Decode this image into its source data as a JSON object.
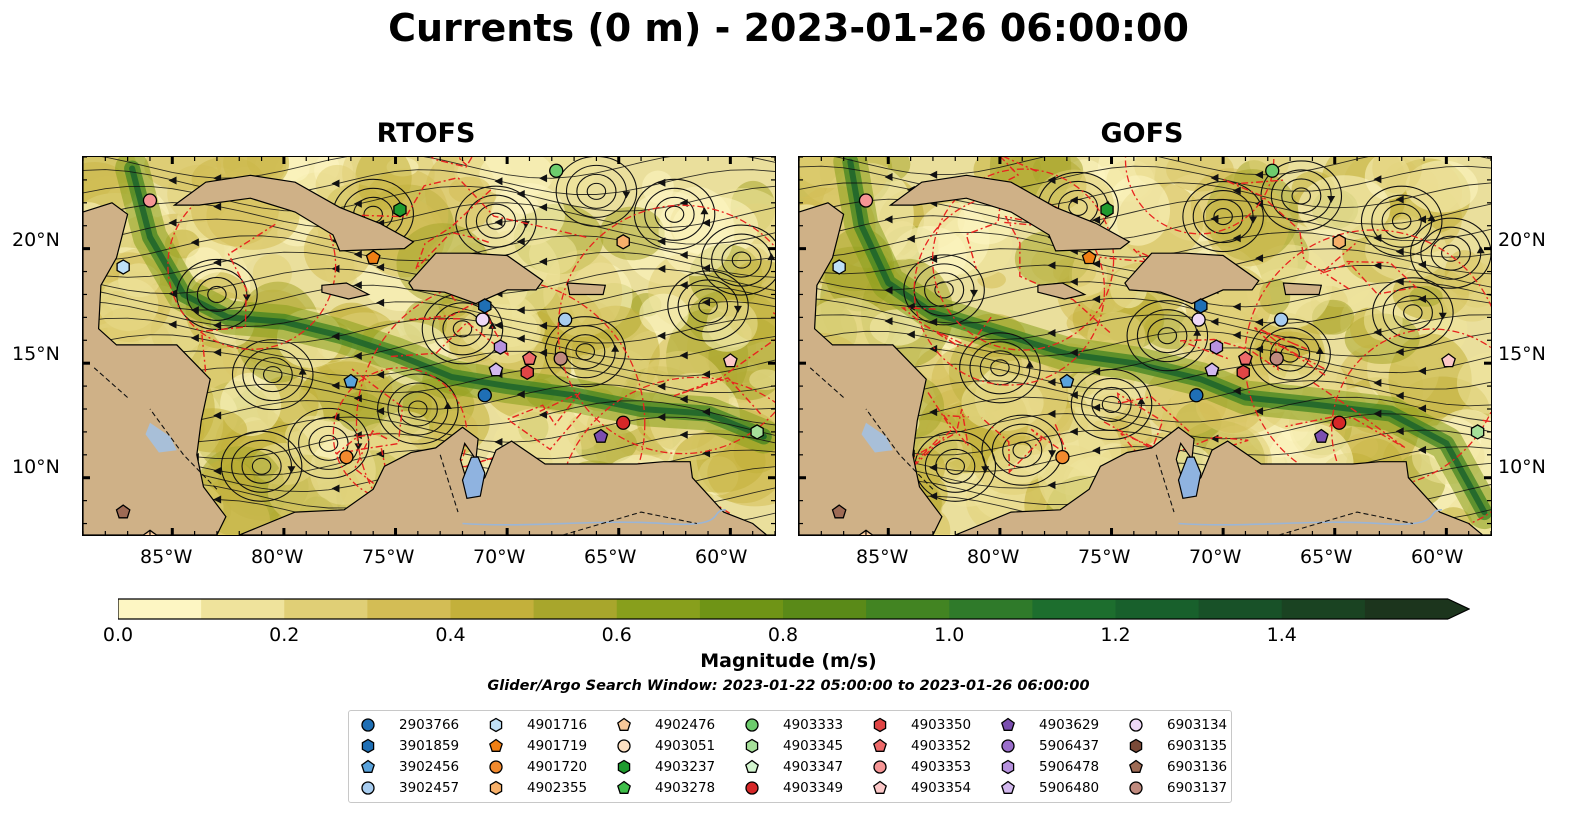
{
  "title": "Currents (0 m) - 2023-01-26 06:00:00",
  "panels": [
    {
      "title": "RTOFS"
    },
    {
      "title": "GOFS"
    }
  ],
  "axes": {
    "lon_ticks": [
      "85°W",
      "80°W",
      "75°W",
      "70°W",
      "65°W",
      "60°W"
    ],
    "lat_ticks": [
      "20°N",
      "15°N",
      "10°N"
    ]
  },
  "colorbar": {
    "label": "Magnitude (m/s)",
    "ticks": [
      "0.0",
      "0.2",
      "0.4",
      "0.6",
      "0.8",
      "1.0",
      "1.2",
      "1.4"
    ],
    "colors": [
      "#fdf6c3",
      "#efe39c",
      "#e0cf76",
      "#d3bd55",
      "#c3b03b",
      "#a8a62c",
      "#889f1c",
      "#6f9416",
      "#5a8a18",
      "#428422",
      "#2f7a2a",
      "#1d6e2e",
      "#18602c",
      "#185128",
      "#1a4322",
      "#1c351d"
    ]
  },
  "subtitle": "Glider/Argo Search Window: 2023-01-22 05:00:00 to 2023-01-26 06:00:00",
  "land_color": "#cfb187",
  "legend": [
    {
      "id": "2903766",
      "marker": "circle",
      "color": "#1f6fb5"
    },
    {
      "id": "3901859",
      "marker": "hexagon",
      "color": "#1f6fb5"
    },
    {
      "id": "3902456",
      "marker": "pentagon",
      "color": "#5aa3dc"
    },
    {
      "id": "3902457",
      "marker": "circle",
      "color": "#a8cdf0"
    },
    {
      "id": "4901716",
      "marker": "hexagon",
      "color": "#bfe0f7"
    },
    {
      "id": "4901719",
      "marker": "pentagon",
      "color": "#f07f14"
    },
    {
      "id": "4901720",
      "marker": "circle",
      "color": "#f28a2e"
    },
    {
      "id": "4902355",
      "marker": "hexagon",
      "color": "#f7b06a"
    },
    {
      "id": "4902476",
      "marker": "pentagon",
      "color": "#f8c99a"
    },
    {
      "id": "4903051",
      "marker": "circle",
      "color": "#fde0c2"
    },
    {
      "id": "4903237",
      "marker": "hexagon",
      "color": "#1e9a2e"
    },
    {
      "id": "4903278",
      "marker": "pentagon",
      "color": "#3fbf4a"
    },
    {
      "id": "4903333",
      "marker": "circle",
      "color": "#6dcc6d"
    },
    {
      "id": "4903345",
      "marker": "hexagon",
      "color": "#a6e09a"
    },
    {
      "id": "4903347",
      "marker": "pentagon",
      "color": "#d3f5cf"
    },
    {
      "id": "4903349",
      "marker": "circle",
      "color": "#d62728"
    },
    {
      "id": "4903350",
      "marker": "hexagon",
      "color": "#e04545"
    },
    {
      "id": "4903352",
      "marker": "pentagon",
      "color": "#ee6a6a"
    },
    {
      "id": "4903353",
      "marker": "circle",
      "color": "#f59595"
    },
    {
      "id": "4903354",
      "marker": "pentagon",
      "color": "#fcc8c8"
    },
    {
      "id": "4903629",
      "marker": "pentagon",
      "color": "#7b4fb0"
    },
    {
      "id": "5906437",
      "marker": "circle",
      "color": "#9b6fcc"
    },
    {
      "id": "5906478",
      "marker": "hexagon",
      "color": "#b792de"
    },
    {
      "id": "5906480",
      "marker": "pentagon",
      "color": "#d2b8ee"
    },
    {
      "id": "6903134",
      "marker": "circle",
      "color": "#eed8f7"
    },
    {
      "id": "6903135",
      "marker": "hexagon",
      "color": "#7a4a38"
    },
    {
      "id": "6903136",
      "marker": "pentagon",
      "color": "#9e6b55"
    },
    {
      "id": "6903137",
      "marker": "circle",
      "color": "#c08a7e"
    }
  ]
}
